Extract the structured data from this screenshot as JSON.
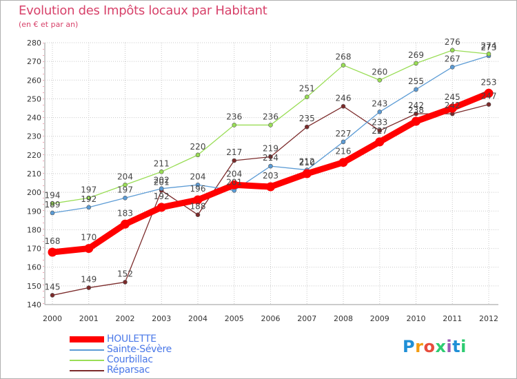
{
  "title": "Evolution des Impôts locaux par Habitant",
  "subtitle": "(en € et par an)",
  "brand": {
    "text": "Proxiti",
    "letter_colors": [
      "#1f8fd6",
      "#f39c12",
      "#e74c3c",
      "#2ecc71",
      "#9b59b6",
      "#1f8fd6",
      "#2ecc71"
    ]
  },
  "chart_data": {
    "type": "line",
    "title": "Evolution des Impôts locaux par Habitant",
    "ylabel": "(en € et par an)",
    "xlabel": "",
    "x": [
      "2000",
      "2001",
      "2002",
      "2003",
      "2004",
      "2005",
      "2006",
      "2007",
      "2008",
      "2009",
      "2010",
      "2011",
      "2012"
    ],
    "ylim": [
      140,
      280
    ],
    "yticks": [
      "140",
      "150",
      "160",
      "170",
      "180",
      "190",
      "200",
      "210",
      "220",
      "230",
      "240",
      "250",
      "260",
      "270",
      "280"
    ],
    "grid": true,
    "legend_position": "bottom-left",
    "series": [
      {
        "name": "HOULETTE",
        "color": "#ff0000",
        "values": [
          168,
          170,
          183,
          192,
          196,
          204,
          203,
          210,
          216,
          227,
          238,
          245,
          253
        ]
      },
      {
        "name": "Sainte-Sévère",
        "color": "#5b9bd5",
        "values": [
          189,
          192,
          197,
          202,
          204,
          201,
          214,
          212,
          227,
          243,
          255,
          267,
          273
        ]
      },
      {
        "name": "Courbillac",
        "color": "#99dd55",
        "values": [
          194,
          197,
          204,
          211,
          220,
          236,
          236,
          251,
          268,
          260,
          269,
          276,
          274
        ]
      },
      {
        "name": "Réparsac",
        "color": "#7b2a2a",
        "values": [
          145,
          149,
          152,
          201,
          188,
          217,
          219,
          235,
          246,
          233,
          242,
          242,
          247
        ]
      }
    ]
  }
}
